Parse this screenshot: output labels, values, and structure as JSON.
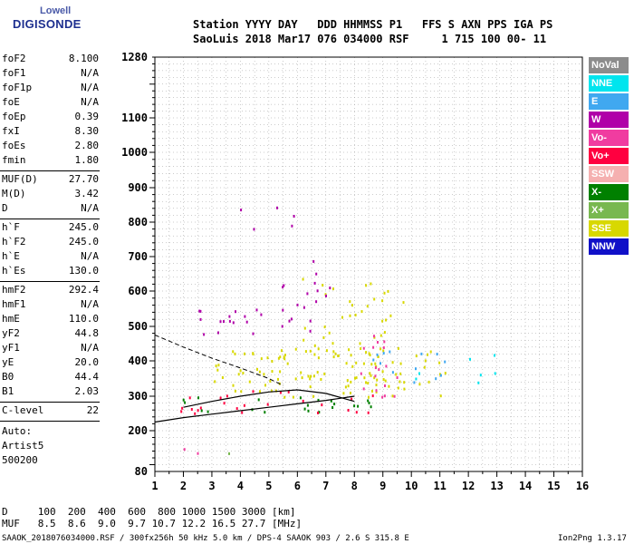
{
  "logo": {
    "brand": "Lowell",
    "name": "DIGISONDE"
  },
  "header": {
    "line1": "Station YYYY DAY   DDD HHMMSS P1   FFS S AXN PPS IGA PS",
    "line2": "SaoLuis 2018 Mar17 076 034000 RSF     1 715 100 00- 11"
  },
  "params": {
    "group1": [
      {
        "k": "foF2",
        "v": "8.100"
      },
      {
        "k": "foF1",
        "v": "N/A"
      },
      {
        "k": "foF1p",
        "v": "N/A"
      },
      {
        "k": "foE",
        "v": "N/A"
      },
      {
        "k": "foEp",
        "v": "0.39"
      },
      {
        "k": "fxI",
        "v": "8.30"
      },
      {
        "k": "foEs",
        "v": "2.80"
      },
      {
        "k": "fmin",
        "v": "1.80"
      }
    ],
    "group2": [
      {
        "k": "MUF(D)",
        "v": "27.70"
      },
      {
        "k": "M(D)",
        "v": "3.42"
      },
      {
        "k": "D",
        "v": "N/A"
      }
    ],
    "group3": [
      {
        "k": "h`F",
        "v": "245.0"
      },
      {
        "k": "h`F2",
        "v": "245.0"
      },
      {
        "k": "h`E",
        "v": "N/A"
      },
      {
        "k": "h`Es",
        "v": "130.0"
      }
    ],
    "group4": [
      {
        "k": "hmF2",
        "v": "292.4"
      },
      {
        "k": "hmF1",
        "v": "N/A"
      },
      {
        "k": "hmE",
        "v": "110.0"
      },
      {
        "k": "yF2",
        "v": "44.8"
      },
      {
        "k": "yF1",
        "v": "N/A"
      },
      {
        "k": "yE",
        "v": "20.0"
      },
      {
        "k": "B0",
        "v": "44.4"
      },
      {
        "k": "B1",
        "v": "2.03"
      }
    ],
    "clevel": {
      "k": "C-level",
      "v": "22"
    },
    "auto": [
      "Auto:",
      "Artist5",
      "500200"
    ]
  },
  "bottom": {
    "d_row": "D     100  200  400  600  800 1000 1500 3000 [km]",
    "muf_row": "MUF   8.5  8.6  9.0  9.7 10.7 12.2 16.5 27.7 [MHz]",
    "footer_left": "SAAOK_2018076034000.RSF / 300fx256h 50 kHz 5.0 km / DPS-4 SAAOK 903 / 2.6 S 315.8 E",
    "footer_right": "Ion2Png 1.3.17"
  },
  "legend": [
    {
      "label": "NoVal",
      "color": "#8c8c8c"
    },
    {
      "label": "NNE",
      "color": "#00e5ee"
    },
    {
      "label": "E",
      "color": "#40a8f0"
    },
    {
      "label": "W",
      "color": "#b000a8"
    },
    {
      "label": "Vo-",
      "color": "#f03ca0"
    },
    {
      "label": "Vo+",
      "color": "#ff0040"
    },
    {
      "label": "SSW",
      "color": "#f5b0b0"
    },
    {
      "label": "X-",
      "color": "#008000"
    },
    {
      "label": "X+",
      "color": "#78b850"
    },
    {
      "label": "SSE",
      "color": "#d8d800"
    },
    {
      "label": "NNW",
      "color": "#1010c8"
    }
  ],
  "chart_data": {
    "type": "scatter",
    "xlabel": "",
    "ylabel": "",
    "xlim": [
      1,
      16
    ],
    "ylim": [
      80,
      1280
    ],
    "x_ticks": [
      1,
      2,
      3,
      4,
      5,
      6,
      7,
      8,
      9,
      10,
      11,
      12,
      13,
      14,
      15,
      16
    ],
    "y_ticks": [
      80,
      200,
      300,
      400,
      500,
      600,
      700,
      800,
      900,
      1000,
      1100,
      1280
    ],
    "grid": true,
    "clusters": [
      {
        "mode": "SSE",
        "freq": [
          3.0,
          11.2
        ],
        "height": [
          300,
          440
        ],
        "density": 0.9
      },
      {
        "mode": "SSE",
        "freq": [
          6.0,
          9.8
        ],
        "height": [
          430,
          640
        ],
        "density": 0.35
      },
      {
        "mode": "X-",
        "freq": [
          1.8,
          8.6
        ],
        "height": [
          255,
          300
        ],
        "density": 0.6
      },
      {
        "mode": "Vo+",
        "freq": [
          1.8,
          9.2
        ],
        "height": [
          250,
          320
        ],
        "density": 0.4
      },
      {
        "mode": "W",
        "freq": [
          1.9,
          6.6
        ],
        "height": [
          480,
          560
        ],
        "density": 0.5
      },
      {
        "mode": "W",
        "freq": [
          5.0,
          7.2
        ],
        "height": [
          560,
          700
        ],
        "density": 0.3
      },
      {
        "mode": "W",
        "freq": [
          2.3,
          6.0
        ],
        "height": [
          780,
          860
        ],
        "density": 0.15
      },
      {
        "mode": "Vo-",
        "freq": [
          8.2,
          9.6
        ],
        "height": [
          300,
          480
        ],
        "density": 0.6
      },
      {
        "mode": "E",
        "freq": [
          8.3,
          11.5
        ],
        "height": [
          340,
          440
        ],
        "density": 0.35
      },
      {
        "mode": "NNE",
        "freq": [
          9.5,
          13.3
        ],
        "height": [
          340,
          420
        ],
        "density": 0.2
      },
      {
        "mode": "Vo-",
        "freq": [
          1.7,
          2.8
        ],
        "height": [
          130,
          160
        ],
        "density": 0.6
      },
      {
        "mode": "X+",
        "freq": [
          2.5,
          4.3
        ],
        "height": [
          130,
          145
        ],
        "density": 0.4
      }
    ],
    "trace_lower": {
      "x": [
        1.0,
        2.0,
        3.0,
        4.0,
        5.0,
        6.0,
        7.0,
        7.5,
        8.0
      ],
      "y": [
        225,
        238,
        248,
        258,
        268,
        278,
        288,
        294,
        300
      ]
    },
    "trace_upper": {
      "x": [
        8.0,
        7.0,
        6.0,
        5.0,
        4.0,
        3.0,
        2.0
      ],
      "y": [
        285,
        308,
        318,
        312,
        300,
        285,
        268
      ]
    },
    "trace_dashed": {
      "x": [
        1.0,
        2.0,
        3.0,
        4.0,
        5.0,
        5.5
      ],
      "y": [
        475,
        440,
        408,
        380,
        350,
        330
      ]
    }
  }
}
